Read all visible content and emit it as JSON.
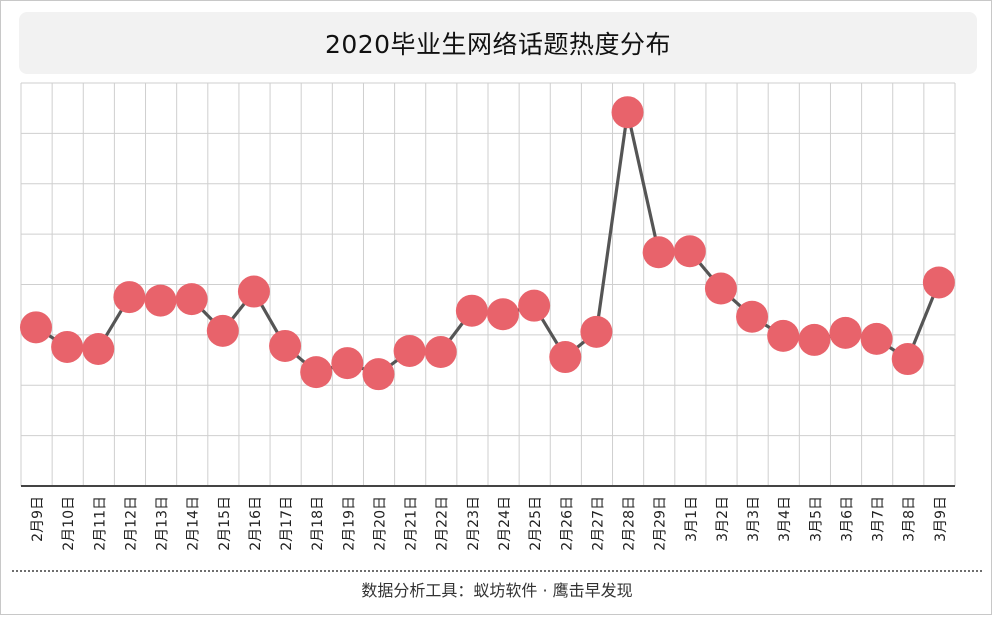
{
  "chart_data": {
    "type": "line",
    "title": "2020毕业生网络话题热度分布",
    "categories": [
      "2月9日",
      "2月10日",
      "2月11日",
      "2月12日",
      "2月13日",
      "2月14日",
      "2月15日",
      "2月16日",
      "2月17日",
      "2月18日",
      "2月19日",
      "2月20日",
      "2月21日",
      "2月22日",
      "2月23日",
      "2月24日",
      "2月25日",
      "2月26日",
      "2月27日",
      "2月28日",
      "2月29日",
      "3月1日",
      "3月2日",
      "3月3日",
      "3月4日",
      "3月5日",
      "3月6日",
      "3月7日",
      "3月8日",
      "3月9日"
    ],
    "values": [
      31.5,
      27.6,
      27.2,
      37.5,
      36.8,
      37.1,
      30.8,
      38.6,
      27.8,
      22.6,
      24.4,
      22.2,
      26.8,
      26.6,
      34.8,
      34.1,
      35.8,
      25.6,
      30.6,
      74.2,
      46.4,
      46.6,
      39.2,
      33.6,
      29.8,
      29.0,
      30.4,
      29.2,
      25.2,
      40.4
    ],
    "xlabel": "",
    "ylabel": "",
    "ylim": [
      0,
      80
    ],
    "grid": true,
    "line_color": "#555555",
    "marker_color": "#e8636b"
  },
  "footer": {
    "text": "数据分析工具：蚁坊软件 · 鹰击早发现"
  }
}
